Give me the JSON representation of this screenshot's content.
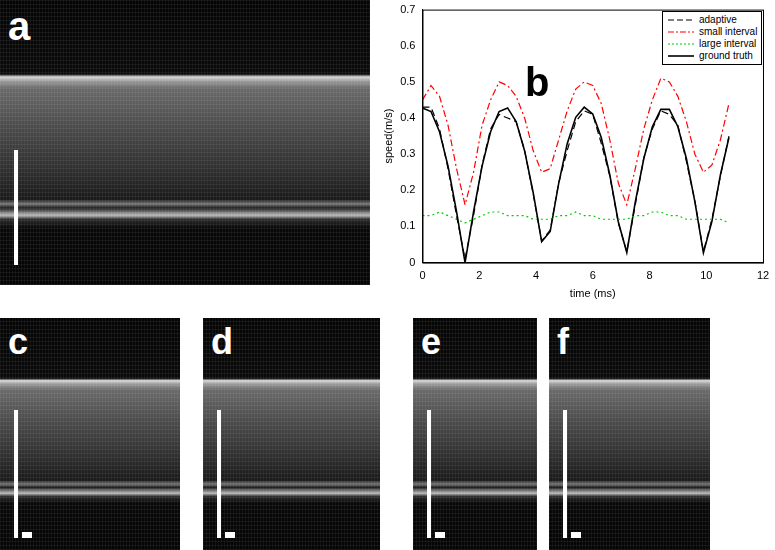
{
  "panels": [
    {
      "label": "a"
    },
    {
      "label": "b"
    },
    {
      "label": "c"
    },
    {
      "label": "d"
    },
    {
      "label": "e"
    },
    {
      "label": "f"
    }
  ],
  "chart_data": {
    "type": "line",
    "x_label": "time (ms)",
    "y_label": "speed(m/s)",
    "x": [
      0,
      0.3,
      0.6,
      0.9,
      1.2,
      1.5,
      1.8,
      2.1,
      2.4,
      2.7,
      3.0,
      3.3,
      3.6,
      3.9,
      4.2,
      4.5,
      4.8,
      5.1,
      5.4,
      5.7,
      6.0,
      6.3,
      6.6,
      6.9,
      7.2,
      7.5,
      7.8,
      8.1,
      8.4,
      8.7,
      9.0,
      9.3,
      9.6,
      9.9,
      10.2,
      10.5,
      10.8
    ],
    "series": [
      {
        "name": "adaptive",
        "color": "#000000",
        "line_style": "dashed",
        "values": [
          0.43,
          0.43,
          0.37,
          0.26,
          0.13,
          0.01,
          0.13,
          0.27,
          0.37,
          0.41,
          0.4,
          0.39,
          0.31,
          0.19,
          0.06,
          0.09,
          0.22,
          0.31,
          0.39,
          0.42,
          0.41,
          0.33,
          0.24,
          0.11,
          0.03,
          0.16,
          0.29,
          0.37,
          0.42,
          0.41,
          0.38,
          0.28,
          0.17,
          0.03,
          0.12,
          0.24,
          0.35
        ]
      },
      {
        "name": "small interval",
        "color": "#ff0000",
        "line_style": "dashdot",
        "values": [
          0.45,
          0.49,
          0.46,
          0.38,
          0.26,
          0.16,
          0.25,
          0.38,
          0.45,
          0.5,
          0.49,
          0.46,
          0.4,
          0.31,
          0.25,
          0.26,
          0.34,
          0.42,
          0.48,
          0.5,
          0.49,
          0.44,
          0.34,
          0.22,
          0.16,
          0.26,
          0.37,
          0.45,
          0.51,
          0.5,
          0.46,
          0.39,
          0.3,
          0.25,
          0.27,
          0.34,
          0.44
        ]
      },
      {
        "name": "large interval",
        "color": "#00cc00",
        "line_style": "dotted",
        "values": [
          0.13,
          0.13,
          0.14,
          0.13,
          0.12,
          0.11,
          0.12,
          0.13,
          0.14,
          0.14,
          0.13,
          0.13,
          0.13,
          0.12,
          0.12,
          0.12,
          0.13,
          0.13,
          0.14,
          0.13,
          0.13,
          0.12,
          0.12,
          0.12,
          0.12,
          0.13,
          0.13,
          0.14,
          0.14,
          0.13,
          0.13,
          0.12,
          0.12,
          0.12,
          0.12,
          0.12,
          0.11
        ]
      },
      {
        "name": "ground truth",
        "color": "#000000",
        "line_style": "solid",
        "values": [
          0.428,
          0.418,
          0.362,
          0.267,
          0.141,
          0,
          0.141,
          0.267,
          0.362,
          0.418,
          0.428,
          0.39,
          0.309,
          0.194,
          0.058,
          0.086,
          0.219,
          0.329,
          0.402,
          0.43,
          0.411,
          0.346,
          0.243,
          0.113,
          0.028,
          0.168,
          0.288,
          0.376,
          0.424,
          0.424,
          0.376,
          0.288,
          0.168,
          0.027,
          0.114,
          0.243,
          0.346
        ]
      }
    ],
    "xlim": [
      0,
      12
    ],
    "xticks": [
      0,
      2,
      4,
      6,
      8,
      10,
      12
    ],
    "ylim": [
      0,
      0.7
    ],
    "yticks": [
      0,
      0.1,
      0.2,
      0.3,
      0.4,
      0.5,
      0.6,
      0.7
    ],
    "grid": false,
    "legend": "upper right"
  }
}
